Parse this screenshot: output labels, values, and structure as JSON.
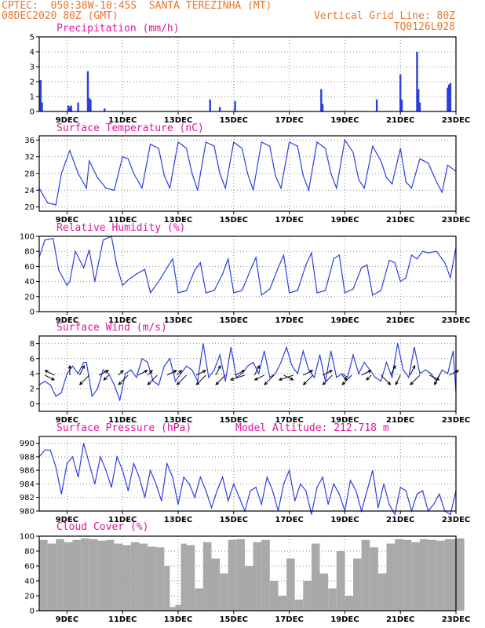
{
  "header": {
    "line1_left": "CPTEC:  050:38W-10:45S  SANTA TEREZINHA (MT)",
    "line2_left": "08DEC2020 80Z (GMT)",
    "line2_right": "Vertical Grid Line: 80Z",
    "line3_right": "TQ0126L028"
  },
  "colors": {
    "header": "#e8772e",
    "title": "#e0159b",
    "line": "#2b3fe0",
    "cloud": "#a9a9a9"
  },
  "x_axis": {
    "start_day": 8.0,
    "end_day": 23.0,
    "tick_days": [
      9,
      11,
      13,
      15,
      17,
      19,
      21,
      23
    ],
    "tick_labels": [
      "9DEC",
      "11DEC",
      "13DEC",
      "15DEC",
      "17DEC",
      "19DEC",
      "21DEC",
      "23DEC"
    ]
  },
  "panels": {
    "precip": {
      "title": "Precipitation (mm/h)"
    },
    "temp": {
      "title": "Surface Temperature (nC)"
    },
    "rh": {
      "title": "Relative Humidity (%)"
    },
    "wind": {
      "title": "Surface Wind (m/s)"
    },
    "pres": {
      "title": "Surface Pressure (hPa)",
      "extra": "Model Altitude: 212.718 m"
    },
    "cloud": {
      "title": "Cloud Cover (%)"
    }
  },
  "chart_data": [
    {
      "type": "bar",
      "id": "precip",
      "title": "Precipitation (mm/h)",
      "ylim": [
        0,
        5
      ],
      "yticks": [
        0,
        1,
        2,
        3,
        4,
        5
      ],
      "x": [
        8.05,
        8.1,
        9.05,
        9.1,
        9.15,
        9.4,
        9.75,
        9.8,
        9.85,
        10.35,
        14.15,
        14.5,
        15.05,
        18.15,
        18.2,
        20.15,
        21.0,
        21.05,
        21.6,
        21.65,
        21.7,
        22.7,
        22.75,
        22.8
      ],
      "values": [
        2.1,
        0.6,
        0.4,
        0.3,
        0.4,
        0.6,
        2.7,
        0.9,
        0.8,
        0.2,
        0.8,
        0.3,
        0.7,
        1.5,
        0.5,
        0.8,
        2.5,
        0.8,
        4.0,
        1.5,
        0.6,
        1.6,
        1.8,
        1.9
      ]
    },
    {
      "type": "line",
      "id": "temp",
      "title": "Surface Temperature (nC)",
      "ylim": [
        19,
        37
      ],
      "yticks": [
        20,
        24,
        28,
        32,
        36
      ],
      "x": [
        8.0,
        8.3,
        8.6,
        8.8,
        9.1,
        9.4,
        9.7,
        9.8,
        10.1,
        10.4,
        10.7,
        11.0,
        11.2,
        11.4,
        11.7,
        12.0,
        12.3,
        12.5,
        12.7,
        13.0,
        13.3,
        13.5,
        13.7,
        14.0,
        14.3,
        14.5,
        14.7,
        15.0,
        15.3,
        15.5,
        15.7,
        16.0,
        16.3,
        16.5,
        16.7,
        17.0,
        17.3,
        17.5,
        17.7,
        18.0,
        18.3,
        18.5,
        18.7,
        19.0,
        19.3,
        19.5,
        19.7,
        20.0,
        20.3,
        20.5,
        20.7,
        21.0,
        21.2,
        21.4,
        21.7,
        22.0,
        22.3,
        22.5,
        22.7,
        23.0
      ],
      "values": [
        24.5,
        21.0,
        20.5,
        28.0,
        33.5,
        28.0,
        24.5,
        31.0,
        27.0,
        24.5,
        24.0,
        32.0,
        31.5,
        28.0,
        24.5,
        35.0,
        34.0,
        27.5,
        24.5,
        35.5,
        34.0,
        28.0,
        24.0,
        35.5,
        34.5,
        28.0,
        24.5,
        35.5,
        34.0,
        28.0,
        24.0,
        35.5,
        34.5,
        27.5,
        24.5,
        35.5,
        34.5,
        27.5,
        24.0,
        35.5,
        34.0,
        28.0,
        24.5,
        36.0,
        33.0,
        26.5,
        24.5,
        34.5,
        31.0,
        27.0,
        25.5,
        34.0,
        26.0,
        24.5,
        31.5,
        30.5,
        26.0,
        23.5,
        30.0,
        28.5
      ]
    },
    {
      "type": "line",
      "id": "rh",
      "title": "Relative Humidity (%)",
      "ylim": [
        0,
        100
      ],
      "yticks": [
        0,
        20,
        40,
        60,
        80,
        100
      ],
      "x": [
        8.0,
        8.2,
        8.5,
        8.7,
        9.0,
        9.1,
        9.3,
        9.6,
        9.8,
        10.0,
        10.3,
        10.6,
        10.8,
        11.0,
        11.2,
        11.5,
        11.8,
        12.0,
        12.3,
        12.6,
        12.8,
        13.0,
        13.3,
        13.6,
        13.8,
        14.0,
        14.3,
        14.6,
        14.8,
        15.0,
        15.3,
        15.6,
        15.8,
        16.0,
        16.3,
        16.6,
        16.8,
        17.0,
        17.3,
        17.6,
        17.8,
        18.0,
        18.3,
        18.6,
        18.8,
        19.0,
        19.3,
        19.6,
        19.8,
        20.0,
        20.3,
        20.6,
        20.8,
        21.0,
        21.2,
        21.4,
        21.6,
        21.8,
        22.0,
        22.3,
        22.6,
        22.8,
        23.0
      ],
      "values": [
        72,
        95,
        97,
        55,
        35,
        40,
        80,
        58,
        82,
        40,
        95,
        100,
        60,
        35,
        42,
        50,
        56,
        25,
        40,
        58,
        70,
        25,
        28,
        55,
        65,
        25,
        28,
        50,
        70,
        25,
        28,
        55,
        72,
        22,
        30,
        58,
        75,
        25,
        28,
        62,
        78,
        25,
        28,
        70,
        75,
        25,
        30,
        58,
        62,
        22,
        28,
        68,
        65,
        40,
        45,
        75,
        70,
        80,
        78,
        80,
        65,
        45,
        85
      ]
    },
    {
      "type": "line",
      "id": "wind",
      "title": "Surface Wind (m/s)",
      "ylim": [
        -1,
        9
      ],
      "yticks": [
        0,
        2,
        4,
        6,
        8
      ],
      "x": [
        8.0,
        8.2,
        8.4,
        8.6,
        8.8,
        9.0,
        9.2,
        9.4,
        9.6,
        9.7,
        9.9,
        10.1,
        10.3,
        10.5,
        10.7,
        10.9,
        11.1,
        11.3,
        11.5,
        11.7,
        11.9,
        12.1,
        12.3,
        12.5,
        12.7,
        12.9,
        13.1,
        13.3,
        13.5,
        13.7,
        13.9,
        14.1,
        14.3,
        14.5,
        14.7,
        14.9,
        15.1,
        15.3,
        15.5,
        15.7,
        15.9,
        16.1,
        16.3,
        16.5,
        16.7,
        16.9,
        17.1,
        17.3,
        17.5,
        17.7,
        17.9,
        18.1,
        18.3,
        18.5,
        18.7,
        18.9,
        19.1,
        19.3,
        19.5,
        19.7,
        19.9,
        20.1,
        20.3,
        20.5,
        20.7,
        20.9,
        21.1,
        21.3,
        21.5,
        21.7,
        21.9,
        22.1,
        22.3,
        22.5,
        22.7,
        22.9,
        23.0
      ],
      "values": [
        2.5,
        3.0,
        2.5,
        1.0,
        1.5,
        4.0,
        5.0,
        4.0,
        5.5,
        5.5,
        1.0,
        2.0,
        4.5,
        4.0,
        2.5,
        0.5,
        4.0,
        4.5,
        3.5,
        6.0,
        5.5,
        3.0,
        2.5,
        5.0,
        6.0,
        3.0,
        4.0,
        5.0,
        4.5,
        3.0,
        8.0,
        3.5,
        4.5,
        6.5,
        3.0,
        7.5,
        3.5,
        4.0,
        5.0,
        5.5,
        4.0,
        7.0,
        3.5,
        4.0,
        5.5,
        7.5,
        5.0,
        4.0,
        7.0,
        4.5,
        3.5,
        6.5,
        3.0,
        7.0,
        3.5,
        4.0,
        3.5,
        6.5,
        4.0,
        5.5,
        4.5,
        3.5,
        3.0,
        5.5,
        3.5,
        8.0,
        4.5,
        3.5,
        7.5,
        4.0,
        4.5,
        4.0,
        3.0,
        4.5,
        4.0,
        7.0,
        1.5
      ]
    },
    {
      "type": "line",
      "id": "pres",
      "title": "Surface Pressure (hPa)",
      "ylim": [
        980,
        991
      ],
      "yticks": [
        980,
        982,
        984,
        986,
        988,
        990
      ],
      "x": [
        8.0,
        8.2,
        8.4,
        8.6,
        8.8,
        9.0,
        9.2,
        9.4,
        9.6,
        9.8,
        10.0,
        10.2,
        10.4,
        10.6,
        10.8,
        11.0,
        11.2,
        11.4,
        11.6,
        11.8,
        12.0,
        12.2,
        12.4,
        12.6,
        12.8,
        13.0,
        13.2,
        13.4,
        13.6,
        13.8,
        14.0,
        14.2,
        14.4,
        14.6,
        14.8,
        15.0,
        15.2,
        15.4,
        15.6,
        15.8,
        16.0,
        16.2,
        16.4,
        16.6,
        16.8,
        17.0,
        17.2,
        17.4,
        17.6,
        17.8,
        18.0,
        18.2,
        18.4,
        18.6,
        18.8,
        19.0,
        19.2,
        19.4,
        19.6,
        19.8,
        20.0,
        20.2,
        20.4,
        20.6,
        20.8,
        21.0,
        21.2,
        21.4,
        21.6,
        21.8,
        22.0,
        22.2,
        22.4,
        22.6,
        22.8,
        23.0
      ],
      "values": [
        988.0,
        989.0,
        989.0,
        986.5,
        982.5,
        987.0,
        988.0,
        985.0,
        990.0,
        987.0,
        984.0,
        988.0,
        986.0,
        983.5,
        988.0,
        986.0,
        983.0,
        987.0,
        985.0,
        982.0,
        986.0,
        984.0,
        981.5,
        987.0,
        985.0,
        981.0,
        985.0,
        984.0,
        982.0,
        985.0,
        983.0,
        980.5,
        983.0,
        985.0,
        981.5,
        984.0,
        982.0,
        980.0,
        983.0,
        983.5,
        981.0,
        985.0,
        983.0,
        980.0,
        984.0,
        986.0,
        981.5,
        984.0,
        983.0,
        979.5,
        983.5,
        985.0,
        981.0,
        984.0,
        982.5,
        980.0,
        984.5,
        983.0,
        980.0,
        983.0,
        986.0,
        980.5,
        984.0,
        981.0,
        979.5,
        983.5,
        983.0,
        980.0,
        982.5,
        983.0,
        980.0,
        981.0,
        982.5,
        980.0,
        979.5,
        983.0
      ]
    },
    {
      "type": "area",
      "id": "cloud",
      "title": "Cloud Cover (%)",
      "ylim": [
        0,
        100
      ],
      "yticks": [
        0,
        20,
        40,
        60,
        80,
        100
      ],
      "x": [
        8.0,
        8.3,
        8.6,
        8.9,
        9.2,
        9.5,
        9.8,
        10.1,
        10.4,
        10.7,
        11.0,
        11.3,
        11.6,
        11.9,
        12.2,
        12.5,
        12.7,
        12.9,
        13.1,
        13.3,
        13.6,
        13.9,
        14.2,
        14.5,
        14.8,
        15.1,
        15.4,
        15.7,
        16.0,
        16.3,
        16.6,
        16.9,
        17.2,
        17.5,
        17.8,
        18.1,
        18.4,
        18.7,
        19.0,
        19.3,
        19.6,
        19.9,
        20.2,
        20.5,
        20.8,
        21.1,
        21.4,
        21.7,
        22.0,
        22.3,
        22.6,
        23.0
      ],
      "values": [
        95,
        90,
        96,
        92,
        95,
        97,
        96,
        94,
        95,
        90,
        88,
        92,
        90,
        86,
        85,
        60,
        5,
        8,
        90,
        88,
        30,
        92,
        70,
        50,
        95,
        96,
        60,
        92,
        95,
        40,
        20,
        70,
        15,
        40,
        90,
        50,
        30,
        80,
        20,
        70,
        95,
        85,
        50,
        90,
        96,
        95,
        92,
        96,
        95,
        94,
        96,
        97
      ]
    }
  ],
  "wind_vectors": {
    "x": [
      8.2,
      8.55,
      9.1,
      9.45,
      9.8,
      10.15,
      10.5,
      10.85,
      11.2,
      11.55,
      11.9,
      12.25,
      12.6,
      12.95,
      13.3,
      13.65,
      14.0,
      14.35,
      14.7,
      15.05,
      15.4,
      15.75,
      16.1,
      16.45,
      16.8,
      17.15,
      17.5,
      17.85,
      18.2,
      18.55,
      18.9,
      19.25,
      19.6,
      19.95,
      20.3,
      20.65,
      21.0,
      21.35,
      21.7,
      22.05,
      22.4,
      22.75
    ],
    "u": [
      2,
      -2,
      0,
      1,
      -2,
      2,
      -1,
      1,
      -2,
      2,
      1,
      -2,
      2,
      1,
      -2,
      2,
      -2,
      1,
      -2,
      2,
      -3,
      1,
      -2,
      -2,
      2,
      -3,
      2,
      -2,
      2,
      -2,
      1,
      -2,
      2,
      -1,
      2,
      1,
      -1,
      1,
      -2,
      2,
      -1,
      2
    ],
    "v": [
      -1,
      1,
      2,
      2,
      -2,
      1,
      -1,
      1,
      -2,
      1,
      1,
      -2,
      1,
      1,
      -2,
      1,
      -2,
      2,
      -2,
      1,
      -1,
      2,
      -1,
      -2,
      -1,
      -1,
      1,
      -2,
      1,
      -2,
      -1,
      -2,
      1,
      -1,
      -2,
      2,
      -2,
      2,
      -2,
      -1,
      -2,
      1
    ]
  }
}
